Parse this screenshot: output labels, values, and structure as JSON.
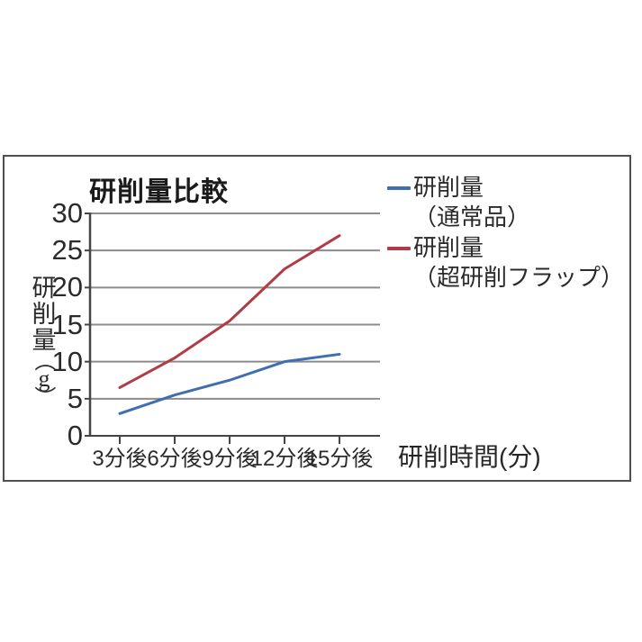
{
  "chart_data": {
    "type": "line",
    "title": "研削量比較",
    "categories": [
      "3分後",
      "6分後",
      "9分後",
      "12分後",
      "15分後"
    ],
    "series": [
      {
        "name": "研削量（通常品）",
        "label_lines": [
          "研削量",
          "（通常品）"
        ],
        "color": "#3f6fae",
        "values": [
          3,
          5.5,
          7.5,
          10,
          11
        ]
      },
      {
        "name": "研削量（超研削フラップ）",
        "label_lines": [
          "研削量",
          "（超研削フラップ）"
        ],
        "color": "#b23c46",
        "values": [
          6.5,
          10.5,
          15.5,
          22.5,
          27
        ]
      }
    ],
    "xlabel": "研削時間(分)",
    "ylabel": "研削量（g）",
    "ylim": [
      0,
      30
    ],
    "y_ticks": [
      0,
      5,
      10,
      15,
      20,
      25,
      30
    ],
    "grid": true,
    "legend_position": "right-top",
    "palette": {
      "grid": "#8c8c8c",
      "axis": "#454545",
      "text": "#2b2b2b",
      "panel_border": "#4f4f4f",
      "background": "#ffffff"
    }
  }
}
